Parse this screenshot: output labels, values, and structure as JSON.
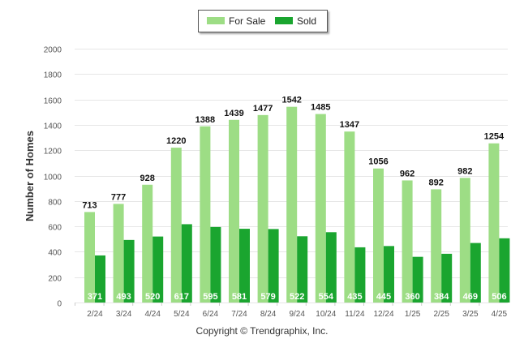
{
  "legend": {
    "for_sale_label": "For Sale",
    "sold_label": "Sold"
  },
  "copyright": "Copyright © Trendgraphix, Inc.",
  "colors": {
    "for_sale": "#9ddd85",
    "sold": "#1aa52f",
    "grid": "#e6e6e6",
    "axis_text": "#555555"
  },
  "chart_data": {
    "type": "bar",
    "categories": [
      "2/24",
      "3/24",
      "4/24",
      "5/24",
      "6/24",
      "7/24",
      "8/24",
      "9/24",
      "10/24",
      "11/24",
      "12/24",
      "1/25",
      "2/25",
      "3/25",
      "4/25"
    ],
    "series": [
      {
        "name": "For Sale",
        "values": [
          713,
          777,
          928,
          1220,
          1388,
          1439,
          1477,
          1542,
          1485,
          1347,
          1056,
          962,
          892,
          982,
          1254
        ]
      },
      {
        "name": "Sold",
        "values": [
          371,
          493,
          520,
          617,
          595,
          581,
          579,
          522,
          554,
          435,
          445,
          360,
          384,
          469,
          506
        ]
      }
    ],
    "ylabel": "Number of Homes",
    "xlabel": "",
    "ylim": [
      0,
      2000
    ],
    "yticks": [
      0,
      200,
      400,
      600,
      800,
      1000,
      1200,
      1400,
      1600,
      1800,
      2000
    ],
    "grid": true,
    "legend_position": "top-center"
  }
}
